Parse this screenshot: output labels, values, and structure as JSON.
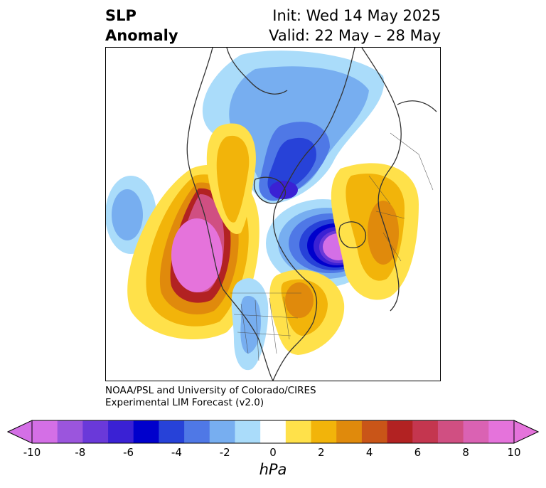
{
  "title": {
    "left_line1": "SLP",
    "left_line2": "Anomaly",
    "right_line1": "Init: Wed 14 May 2025",
    "right_line2": "Valid: 22 May – 28 May"
  },
  "credit": {
    "line1": "NOAA/PSL and University of Colorado/CIRES",
    "line2": "Experimental LIM Forecast (v2.0)"
  },
  "colorbar": {
    "unit": "hPa",
    "ticks": [
      "-10",
      "-8",
      "-6",
      "-4",
      "-2",
      "0",
      "2",
      "4",
      "6",
      "8",
      "10"
    ],
    "colors": [
      "#d46fe6",
      "#9b55dd",
      "#6a39d9",
      "#3a21d4",
      "#0000cc",
      "#2742d8",
      "#4f78e6",
      "#77aef0",
      "#aadcfa",
      "#ffffff",
      "#ffe14a",
      "#f2b40a",
      "#e08a0c",
      "#c95518",
      "#b22222",
      "#c4364f",
      "#d04f82",
      "#da62b3",
      "#e573db"
    ]
  },
  "map": {
    "features": [
      "pacific-high-anomaly",
      "north-atlantic-low-anomaly",
      "europe-high-anomaly",
      "arctic-low-anomaly",
      "central-us-low-anomaly",
      "east-coast-high-anomaly"
    ]
  }
}
